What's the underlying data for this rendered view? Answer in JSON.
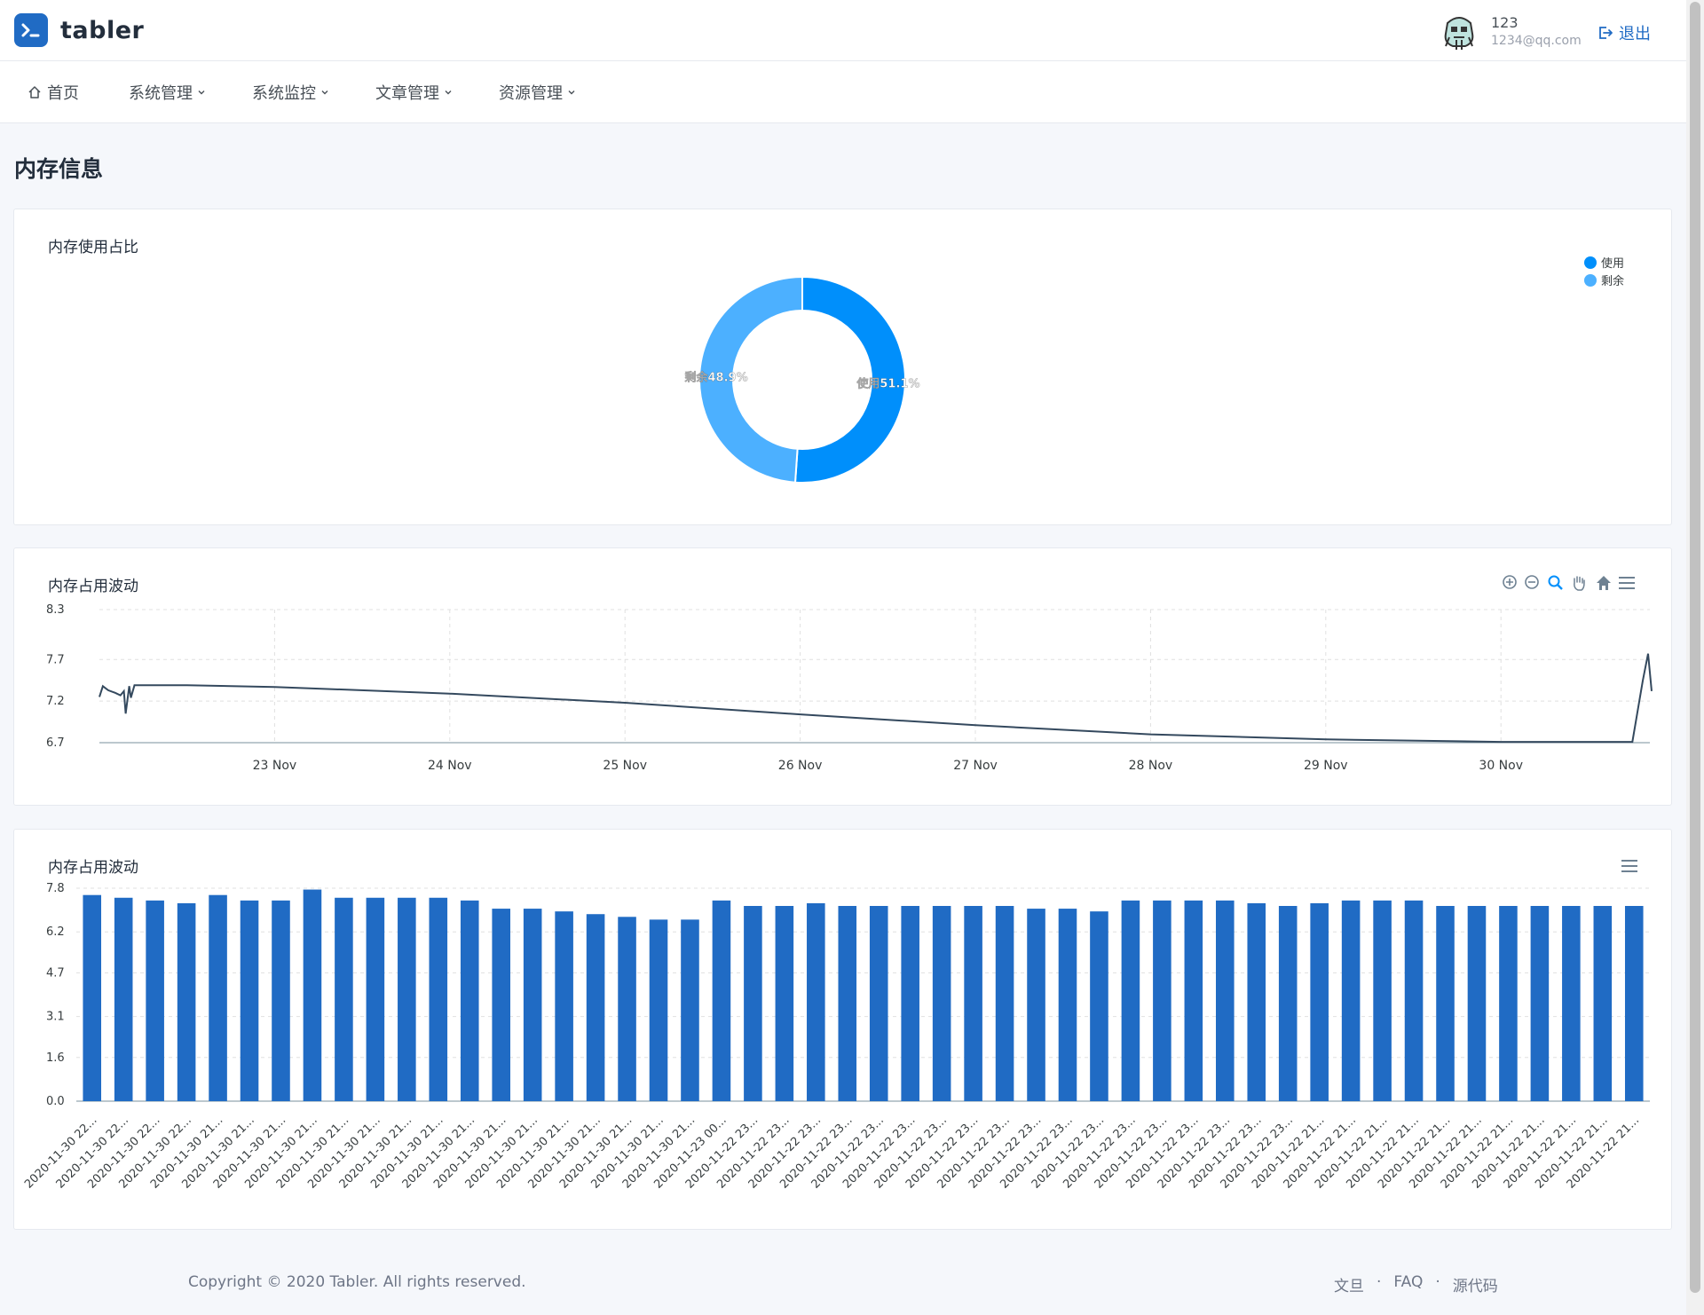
{
  "brand": {
    "name": "tabler",
    "accent": "#206bc4"
  },
  "user": {
    "name": "123",
    "email": "1234@qq.com",
    "logout_label": "退出"
  },
  "nav": [
    {
      "label": "首页",
      "icon": "home-icon",
      "dropdown": false
    },
    {
      "label": "系统管理",
      "icon": "",
      "dropdown": true
    },
    {
      "label": "系统监控",
      "icon": "",
      "dropdown": true
    },
    {
      "label": "文章管理",
      "icon": "",
      "dropdown": true
    },
    {
      "label": "资源管理",
      "icon": "",
      "dropdown": true
    }
  ],
  "page_title": "内存信息",
  "cards": {
    "pie_title": "内存使用占比",
    "line_title": "内存占用波动",
    "bar_title": "内存占用波动"
  },
  "footer": {
    "copyright": "Copyright © 2020 Tabler. All rights reserved.",
    "links": [
      "文旦",
      "FAQ",
      "源代码"
    ],
    "separator": "·"
  },
  "chart_data": [
    {
      "type": "pie",
      "title": "内存使用占比",
      "labels": [
        "使用",
        "剩余"
      ],
      "values": [
        51.1,
        48.9
      ],
      "value_labels": [
        "使用51.1%",
        "剩余48.9%"
      ],
      "colors": [
        "#008ffb",
        "#4cb0ff"
      ],
      "donut": true,
      "legend": "top-right"
    },
    {
      "type": "line",
      "title": "内存占用波动",
      "x_start": "2020-11-22",
      "x_ticks": [
        "23 Nov",
        "24 Nov",
        "25 Nov",
        "26 Nov",
        "27 Nov",
        "28 Nov",
        "29 Nov",
        "30 Nov"
      ],
      "y_ticks": [
        "6.7",
        "7.2",
        "7.7",
        "8.3"
      ],
      "ylim": [
        6.7,
        8.3
      ],
      "xlim_days": [
        0,
        8.85
      ],
      "series": [
        {
          "color": "#34495e",
          "points": [
            [
              0.0,
              7.25
            ],
            [
              0.02,
              7.38
            ],
            [
              0.05,
              7.33
            ],
            [
              0.09,
              7.3
            ],
            [
              0.12,
              7.27
            ],
            [
              0.14,
              7.32
            ],
            [
              0.15,
              7.05
            ],
            [
              0.17,
              7.38
            ],
            [
              0.18,
              7.24
            ],
            [
              0.2,
              7.39
            ],
            [
              0.5,
              7.39
            ],
            [
              1,
              7.37
            ],
            [
              2,
              7.29
            ],
            [
              3,
              7.18
            ],
            [
              4,
              7.04
            ],
            [
              5,
              6.91
            ],
            [
              6,
              6.8
            ],
            [
              7,
              6.74
            ],
            [
              8,
              6.71
            ],
            [
              8.75,
              6.71
            ],
            [
              8.81,
              7.45
            ],
            [
              8.84,
              7.77
            ],
            [
              8.86,
              7.32
            ]
          ]
        }
      ],
      "toolbar": [
        "zoom-in-icon",
        "zoom-out-icon",
        "selection-zoom-icon",
        "pan-icon",
        "reset-home-icon",
        "menu-icon"
      ],
      "grid": true
    },
    {
      "type": "bar",
      "title": "内存占用波动",
      "y_ticks": [
        "0.0",
        "1.6",
        "3.1",
        "4.7",
        "6.2",
        "7.8"
      ],
      "ylim": [
        0,
        7.8
      ],
      "color": "#206bc4",
      "categories": [
        "2020-11-30 22...",
        "2020-11-30 22...",
        "2020-11-30 22...",
        "2020-11-30 22...",
        "2020-11-30 21...",
        "2020-11-30 21...",
        "2020-11-30 21...",
        "2020-11-30 21...",
        "2020-11-30 21...",
        "2020-11-30 21...",
        "2020-11-30 21...",
        "2020-11-30 21...",
        "2020-11-30 21...",
        "2020-11-30 21...",
        "2020-11-30 21...",
        "2020-11-30 21...",
        "2020-11-30 21...",
        "2020-11-30 21...",
        "2020-11-30 21...",
        "2020-11-30 21...",
        "2020-11-23 00...",
        "2020-11-22 23...",
        "2020-11-22 23...",
        "2020-11-22 23...",
        "2020-11-22 23...",
        "2020-11-22 23...",
        "2020-11-22 23...",
        "2020-11-22 23...",
        "2020-11-22 23...",
        "2020-11-22 23...",
        "2020-11-22 23...",
        "2020-11-22 23...",
        "2020-11-22 23...",
        "2020-11-22 23...",
        "2020-11-22 23...",
        "2020-11-22 23...",
        "2020-11-22 23...",
        "2020-11-22 23...",
        "2020-11-22 23...",
        "2020-11-22 21...",
        "2020-11-22 21...",
        "2020-11-22 21...",
        "2020-11-22 21...",
        "2020-11-22 21...",
        "2020-11-22 21...",
        "2020-11-22 21...",
        "2020-11-22 21...",
        "2020-11-22 21...",
        "2020-11-22 21...",
        "2020-11-22 21..."
      ],
      "values": [
        7.55,
        7.45,
        7.35,
        7.25,
        7.55,
        7.35,
        7.35,
        7.75,
        7.45,
        7.45,
        7.45,
        7.45,
        7.35,
        7.05,
        7.05,
        6.95,
        6.85,
        6.75,
        6.65,
        6.65,
        7.35,
        7.15,
        7.15,
        7.25,
        7.15,
        7.15,
        7.15,
        7.15,
        7.15,
        7.15,
        7.05,
        7.05,
        6.95,
        7.35,
        7.35,
        7.35,
        7.35,
        7.25,
        7.15,
        7.25,
        7.35,
        7.35,
        7.35,
        7.15,
        7.15,
        7.15,
        7.15,
        7.15,
        7.15,
        7.15
      ],
      "toolbar": [
        "menu-icon"
      ],
      "grid": true
    }
  ]
}
